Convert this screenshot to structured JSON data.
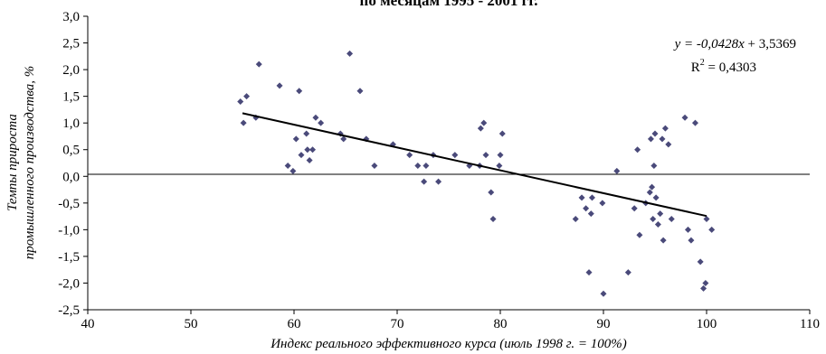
{
  "chart_data": {
    "type": "scatter",
    "title": "по месяцам 1995 - 2001 гг.",
    "xlabel": "Индекс реального эффективного курса (июль 1998 г. = 100%)",
    "ylabel_line1": "Темпы прироста",
    "ylabel_line2": "промышленного производства, %",
    "xlim": [
      40,
      110
    ],
    "ylim": [
      -2.5,
      3.0
    ],
    "x_ticks": [
      40,
      50,
      60,
      70,
      80,
      90,
      100,
      110
    ],
    "x_tick_labels": [
      "40",
      "50",
      "60",
      "70",
      "80",
      "90",
      "100",
      "110"
    ],
    "y_ticks": [
      3.0,
      2.5,
      2.0,
      1.5,
      1.0,
      0.5,
      0.0,
      -0.5,
      -1.0,
      -1.5,
      -2.0,
      -2.5
    ],
    "y_tick_labels": [
      "3,0",
      "2,5",
      "2,0",
      "1,5",
      "1,0",
      "0,5",
      "0,0",
      "-0,5",
      "-1,0",
      "-1,5",
      "-2,0",
      "-2,5"
    ],
    "equation": {
      "prefix": "y = -0,0428",
      "var": "x",
      "suffix": " + 3,5369",
      "r2_label": "R",
      "r2_sup": "2",
      "r2_value": " = 0,4303"
    },
    "trendline": {
      "slope": -0.0428,
      "intercept": 3.5369,
      "x_range": [
        55,
        100
      ]
    },
    "grid": false,
    "colors": {
      "marker": "#4a4a7a",
      "line": "#000000",
      "zero_line": "#000000"
    },
    "points": [
      [
        54.8,
        1.4
      ],
      [
        55.1,
        1.0
      ],
      [
        55.4,
        1.5
      ],
      [
        56.3,
        1.1
      ],
      [
        56.6,
        2.1
      ],
      [
        58.6,
        1.7
      ],
      [
        59.4,
        0.2
      ],
      [
        59.9,
        0.1
      ],
      [
        60.2,
        0.7
      ],
      [
        60.5,
        1.6
      ],
      [
        60.7,
        0.4
      ],
      [
        61.2,
        0.8
      ],
      [
        61.3,
        0.5
      ],
      [
        61.5,
        0.3
      ],
      [
        61.8,
        0.5
      ],
      [
        62.1,
        1.1
      ],
      [
        62.6,
        1.0
      ],
      [
        64.5,
        0.8
      ],
      [
        64.8,
        0.7
      ],
      [
        65.4,
        2.3
      ],
      [
        66.4,
        1.6
      ],
      [
        67.0,
        0.7
      ],
      [
        67.8,
        0.2
      ],
      [
        69.6,
        0.6
      ],
      [
        71.2,
        0.4
      ],
      [
        72.0,
        0.2
      ],
      [
        72.6,
        -0.1
      ],
      [
        72.8,
        0.2
      ],
      [
        73.5,
        0.4
      ],
      [
        74.0,
        -0.1
      ],
      [
        75.6,
        0.4
      ],
      [
        77.0,
        0.2
      ],
      [
        78.0,
        0.2
      ],
      [
        78.1,
        0.9
      ],
      [
        78.4,
        1.0
      ],
      [
        78.6,
        0.4
      ],
      [
        79.1,
        -0.3
      ],
      [
        79.3,
        -0.8
      ],
      [
        79.9,
        0.2
      ],
      [
        80.0,
        0.4
      ],
      [
        80.2,
        0.8
      ],
      [
        87.3,
        -0.8
      ],
      [
        87.9,
        -0.4
      ],
      [
        88.3,
        -0.6
      ],
      [
        88.6,
        -1.8
      ],
      [
        88.8,
        -0.7
      ],
      [
        88.9,
        -0.4
      ],
      [
        89.9,
        -0.5
      ],
      [
        90.0,
        -2.2
      ],
      [
        91.3,
        0.1
      ],
      [
        92.4,
        -1.8
      ],
      [
        93.0,
        -0.6
      ],
      [
        93.3,
        0.5
      ],
      [
        93.5,
        -1.1
      ],
      [
        94.1,
        -0.5
      ],
      [
        94.5,
        -0.3
      ],
      [
        94.6,
        0.7
      ],
      [
        94.7,
        -0.2
      ],
      [
        94.8,
        -0.8
      ],
      [
        94.9,
        0.2
      ],
      [
        95.0,
        0.8
      ],
      [
        95.1,
        -0.4
      ],
      [
        95.3,
        -0.9
      ],
      [
        95.5,
        -0.7
      ],
      [
        95.7,
        0.7
      ],
      [
        95.8,
        -1.2
      ],
      [
        96.0,
        0.9
      ],
      [
        96.3,
        0.6
      ],
      [
        96.6,
        -0.8
      ],
      [
        97.9,
        1.1
      ],
      [
        98.2,
        -1.0
      ],
      [
        98.5,
        -1.2
      ],
      [
        98.9,
        1.0
      ],
      [
        99.4,
        -1.6
      ],
      [
        99.7,
        -2.1
      ],
      [
        99.9,
        -2.0
      ],
      [
        100.0,
        -0.8
      ],
      [
        100.5,
        -1.0
      ]
    ]
  }
}
